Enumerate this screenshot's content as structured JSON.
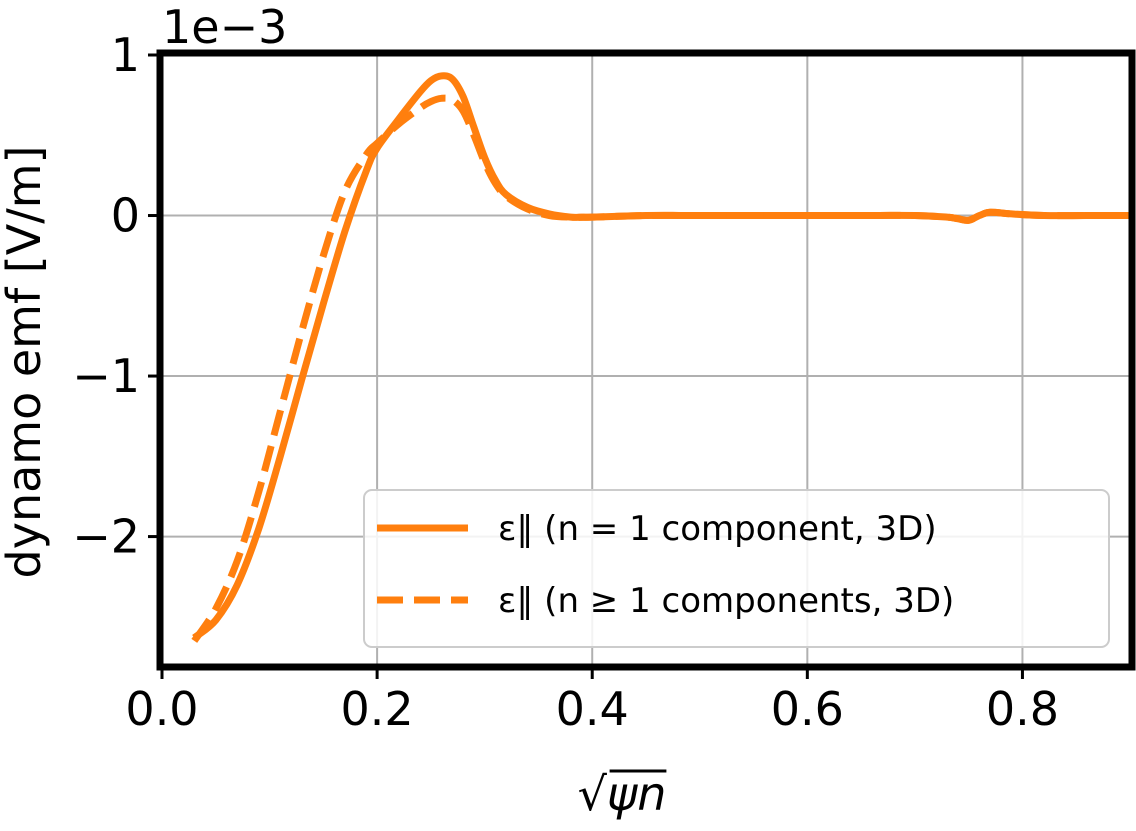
{
  "chart_data": {
    "type": "line",
    "xlabel": "√ψn",
    "ylabel": "dynamo emf [V/m]",
    "scale_note": "1e−3",
    "xlim": [
      0.0,
      0.9
    ],
    "ylim": [
      -2.8,
      1.0
    ],
    "x_ticks": [
      0.0,
      0.2,
      0.4,
      0.6,
      0.8
    ],
    "x_tick_labels": [
      "0.0",
      "0.2",
      "0.4",
      "0.6",
      "0.8"
    ],
    "y_ticks": [
      1,
      0,
      -1,
      -2
    ],
    "y_tick_labels": [
      "1",
      "0",
      "−1",
      "−2"
    ],
    "y_units_multiplier": 0.001,
    "grid": true,
    "legend_position": "lower-right",
    "color": "#ff7f0e",
    "series": [
      {
        "name": "ε‖ (n = 1 component, 3D)",
        "style": "solid",
        "x": [
          0.03,
          0.05,
          0.07,
          0.09,
          0.11,
          0.13,
          0.15,
          0.17,
          0.19,
          0.2,
          0.22,
          0.24,
          0.25,
          0.26,
          0.27,
          0.28,
          0.29,
          0.3,
          0.31,
          0.32,
          0.34,
          0.36,
          0.38,
          0.39,
          0.4,
          0.45,
          0.5,
          0.55,
          0.6,
          0.65,
          0.7,
          0.73,
          0.74,
          0.75,
          0.76,
          0.77,
          0.79,
          0.82,
          0.86,
          0.9
        ],
        "y": [
          -2.63,
          -2.52,
          -2.3,
          -1.95,
          -1.5,
          -1.02,
          -0.55,
          -0.1,
          0.28,
          0.42,
          0.6,
          0.77,
          0.84,
          0.87,
          0.85,
          0.74,
          0.55,
          0.36,
          0.22,
          0.13,
          0.05,
          0.01,
          -0.01,
          -0.01,
          -0.01,
          0.0,
          0.0,
          0.0,
          0.0,
          0.0,
          0.0,
          -0.01,
          -0.02,
          -0.03,
          0.0,
          0.02,
          0.01,
          0.0,
          0.0,
          0.0
        ]
      },
      {
        "name": "ε‖ (n ≥ 1 components, 3D)",
        "style": "dashed",
        "x": [
          0.03,
          0.05,
          0.07,
          0.09,
          0.11,
          0.13,
          0.15,
          0.17,
          0.19,
          0.2,
          0.22,
          0.24,
          0.25,
          0.26,
          0.27,
          0.28,
          0.29,
          0.3,
          0.31,
          0.32,
          0.34,
          0.36,
          0.38,
          0.4,
          0.45,
          0.5,
          0.55,
          0.6,
          0.65,
          0.7,
          0.73,
          0.74,
          0.75,
          0.76,
          0.77,
          0.79,
          0.82,
          0.86,
          0.9
        ],
        "y": [
          -2.65,
          -2.45,
          -2.15,
          -1.72,
          -1.22,
          -0.72,
          -0.25,
          0.15,
          0.38,
          0.45,
          0.57,
          0.67,
          0.71,
          0.73,
          0.72,
          0.65,
          0.5,
          0.33,
          0.2,
          0.12,
          0.04,
          0.0,
          -0.01,
          -0.01,
          0.0,
          0.0,
          0.0,
          0.0,
          0.0,
          0.0,
          -0.01,
          -0.02,
          -0.03,
          0.0,
          0.02,
          0.01,
          0.0,
          0.0,
          0.0
        ]
      }
    ]
  }
}
